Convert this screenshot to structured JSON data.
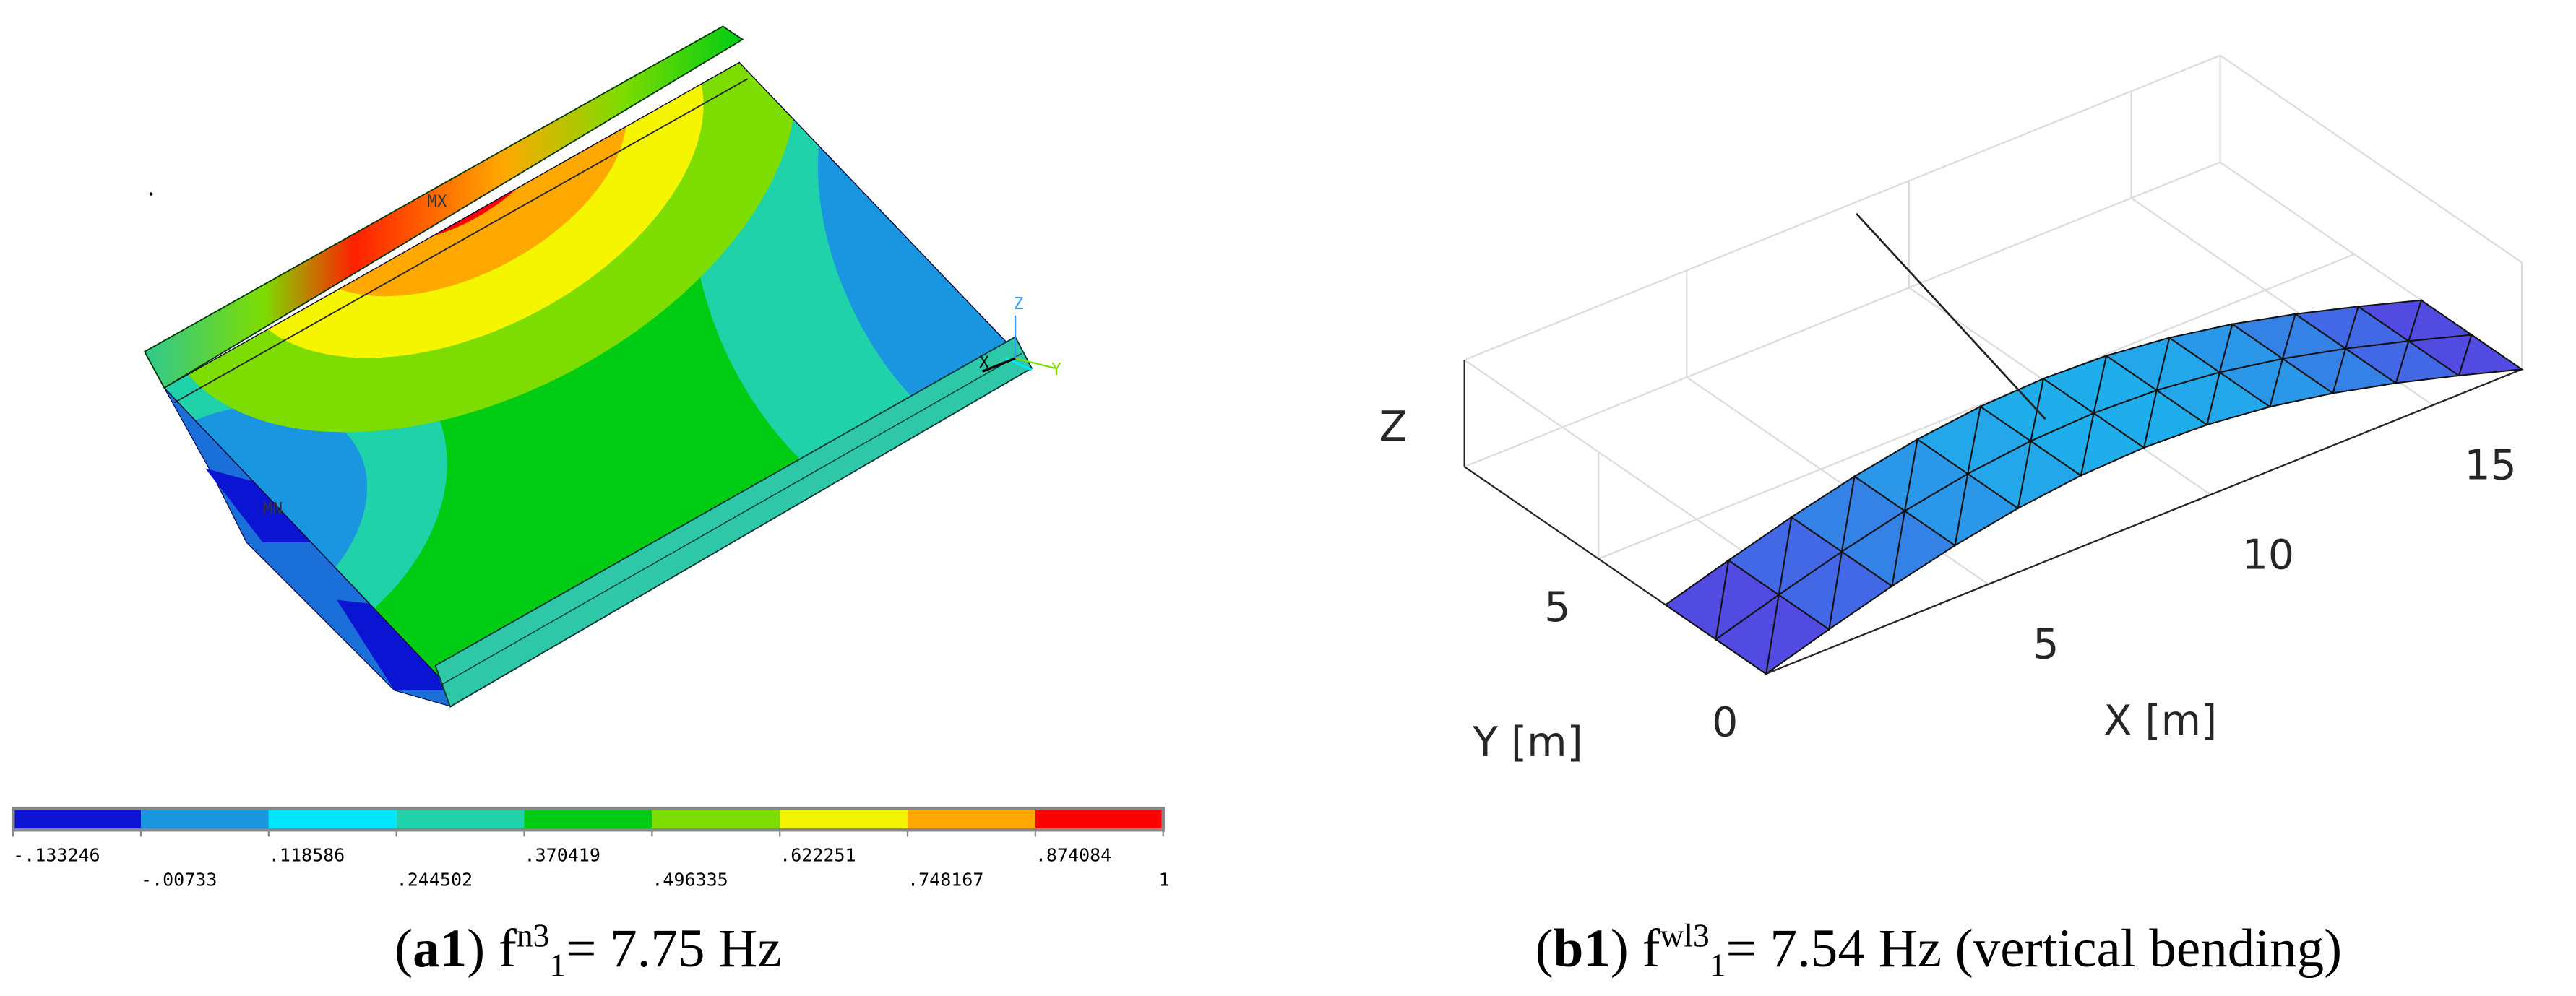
{
  "panel_a": {
    "label": "a1",
    "symbol": "f",
    "superscript": "n3",
    "subscript": "1",
    "equation": "= 7.75 Hz",
    "markers": [
      "MX",
      "MN"
    ],
    "triad": [
      "Z",
      "Y",
      "X"
    ],
    "colorbar": {
      "colors": [
        "#0a14d2",
        "#1a96e0",
        "#00e6ff",
        "#20d2aa",
        "#00cc14",
        "#7ddc00",
        "#f5f500",
        "#ffa800",
        "#ff0000"
      ],
      "levels": [
        {
          "value": -0.133246,
          "label": "-.133246"
        },
        {
          "value": -0.00733,
          "label": "-.00733"
        },
        {
          "value": 0.118586,
          "label": ".118586"
        },
        {
          "value": 0.244502,
          "label": ".244502"
        },
        {
          "value": 0.370419,
          "label": ".370419"
        },
        {
          "value": 0.496335,
          "label": ".496335"
        },
        {
          "value": 0.622251,
          "label": ".622251"
        },
        {
          "value": 0.748167,
          "label": ".748167"
        },
        {
          "value": 0.874084,
          "label": ".874084"
        },
        1
      ]
    }
  },
  "panel_b": {
    "label": "b1",
    "symbol": "f",
    "superscript": "wl3",
    "subscript": "1",
    "equation": "= 7.54 Hz (vertical bending)",
    "zlabel": "Z",
    "xlabel": "X [m]",
    "ylabel": "Y [m]",
    "xlim": [
      0,
      17
    ],
    "ylim": [
      0,
      9
    ],
    "xticks": [
      5,
      10,
      15
    ],
    "yticks": [
      0,
      5
    ]
  }
}
